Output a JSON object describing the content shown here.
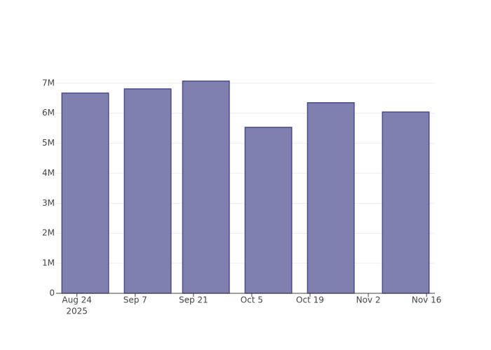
{
  "chart_data": {
    "type": "bar",
    "x": [
      "2025-08-26",
      "2025-09-10",
      "2025-09-24",
      "2025-10-09",
      "2025-10-24",
      "2025-11-11"
    ],
    "values": [
      6670000,
      6810000,
      7070000,
      5530000,
      6350000,
      6040000
    ],
    "color": "#7f7fb0",
    "edge_color": "#4b4b8c",
    "xlim": [
      "2025-08-19",
      "2025-11-18"
    ],
    "xticks": [
      {
        "value": "2025-08-24",
        "label": [
          "Aug 24",
          "2025"
        ]
      },
      {
        "value": "2025-09-07",
        "label": "Sep 7"
      },
      {
        "value": "2025-09-21",
        "label": "Sep 21"
      },
      {
        "value": "2025-10-05",
        "label": "Oct 5"
      },
      {
        "value": "2025-10-19",
        "label": "Oct 19"
      },
      {
        "value": "2025-11-02",
        "label": "Nov 2"
      },
      {
        "value": "2025-11-16",
        "label": "Nov 16"
      }
    ],
    "ylim": [
      0,
      7440000
    ],
    "yticks": [
      {
        "value": 0,
        "label": "0"
      },
      {
        "value": 1000000,
        "label": "1M"
      },
      {
        "value": 2000000,
        "label": "2M"
      },
      {
        "value": 3000000,
        "label": "3M"
      },
      {
        "value": 4000000,
        "label": "4M"
      },
      {
        "value": 5000000,
        "label": "5M"
      },
      {
        "value": 6000000,
        "label": "6M"
      },
      {
        "value": 7000000,
        "label": "7M"
      }
    ],
    "grid": true
  }
}
